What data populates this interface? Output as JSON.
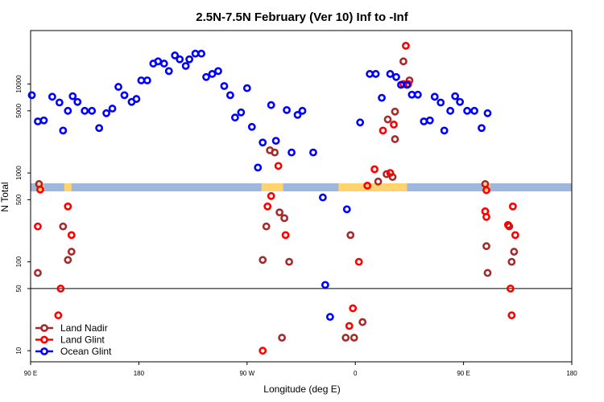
{
  "chart_data": {
    "type": "scatter",
    "title": "2.5N-7.5N February (Ver 10)   Inf to -Inf",
    "xlabel": "Longitude (deg E)",
    "ylabel": "N Total",
    "x_axis": {
      "range": [
        90,
        450
      ],
      "ticks": [
        {
          "value": 90,
          "label": "90 E"
        },
        {
          "value": 180,
          "label": "180"
        },
        {
          "value": 270,
          "label": "90 W"
        },
        {
          "value": 360,
          "label": "0"
        },
        {
          "value": 450,
          "label": "90 E"
        },
        {
          "value": 540,
          "label": "180"
        }
      ],
      "display_range_note": "axis spans 90 to 540 (wrapped longitude)"
    },
    "y_axis": {
      "scale": "log",
      "range": [
        7.5,
        40000
      ],
      "ticks": [
        10,
        50,
        100,
        500,
        1000,
        5000,
        10000
      ]
    },
    "reference_line_y": 50,
    "legend": {
      "position": "bottom-left",
      "entries": [
        {
          "name": "Land Nadir",
          "color": "#a52a2a"
        },
        {
          "name": "Land Glint",
          "color": "#ff0000"
        },
        {
          "name": "Ocean Glint",
          "color": "#0000ff"
        }
      ]
    },
    "land_mask_band": {
      "color_ocean": "#9fb7dc",
      "color_land": "#ffd36e"
    },
    "series": [
      {
        "name": "Land Nadir",
        "color": "#a52a2a",
        "points": [
          [
            97,
            750
          ],
          [
            96,
            75
          ],
          [
            117,
            250
          ],
          [
            121,
            105
          ],
          [
            124,
            130
          ],
          [
            283,
            105
          ],
          [
            286,
            250
          ],
          [
            289,
            1800
          ],
          [
            293,
            1700
          ],
          [
            297,
            360
          ],
          [
            301,
            310
          ],
          [
            305,
            100
          ],
          [
            299,
            14
          ],
          [
            352,
            14
          ],
          [
            356,
            200
          ],
          [
            359,
            14
          ],
          [
            366,
            21
          ],
          [
            379,
            800
          ],
          [
            387,
            4000
          ],
          [
            391,
            900
          ],
          [
            393,
            4900
          ],
          [
            386,
            970
          ],
          [
            393,
            2400
          ],
          [
            400,
            18000
          ],
          [
            405,
            11000
          ],
          [
            468,
            750
          ],
          [
            469,
            150
          ],
          [
            470,
            75
          ],
          [
            488,
            250
          ],
          [
            490,
            100
          ],
          [
            492,
            130
          ]
        ]
      },
      {
        "name": "Land Glint",
        "color": "#ff0000",
        "points": [
          [
            96,
            250
          ],
          [
            98,
            650
          ],
          [
            115,
            50
          ],
          [
            113,
            25
          ],
          [
            121,
            420
          ],
          [
            124,
            200
          ],
          [
            283,
            10
          ],
          [
            287,
            420
          ],
          [
            290,
            550
          ],
          [
            296,
            1200
          ],
          [
            302,
            200
          ],
          [
            355,
            19
          ],
          [
            358,
            30
          ],
          [
            363,
            100
          ],
          [
            370,
            720
          ],
          [
            376,
            1100
          ],
          [
            389,
            1000
          ],
          [
            383,
            3000
          ],
          [
            392,
            3500
          ],
          [
            400,
            10000
          ],
          [
            402,
            27000
          ],
          [
            404,
            10000
          ],
          [
            469,
            640
          ],
          [
            468,
            370
          ],
          [
            469,
            320
          ],
          [
            487,
            260
          ],
          [
            489,
            50
          ],
          [
            490,
            25
          ],
          [
            491,
            420
          ],
          [
            493,
            200
          ]
        ]
      },
      {
        "name": "Ocean Glint",
        "color": "#0000ff",
        "points": [
          [
            91,
            7500
          ],
          [
            96,
            3800
          ],
          [
            101,
            3900
          ],
          [
            108,
            7200
          ],
          [
            114,
            6200
          ],
          [
            117,
            3000
          ],
          [
            121,
            5000
          ],
          [
            125,
            7300
          ],
          [
            129,
            6300
          ],
          [
            135,
            5000
          ],
          [
            141,
            5000
          ],
          [
            147,
            3200
          ],
          [
            153,
            4700
          ],
          [
            158,
            5300
          ],
          [
            163,
            9300
          ],
          [
            168,
            7500
          ],
          [
            174,
            6300
          ],
          [
            178,
            6800
          ],
          [
            182,
            11000
          ],
          [
            187,
            11000
          ],
          [
            192,
            17000
          ],
          [
            196,
            18000
          ],
          [
            201,
            17000
          ],
          [
            205,
            14000
          ],
          [
            210,
            21000
          ],
          [
            214,
            19000
          ],
          [
            219,
            16000
          ],
          [
            222,
            19000
          ],
          [
            227,
            22000
          ],
          [
            232,
            22000
          ],
          [
            236,
            12000
          ],
          [
            241,
            13000
          ],
          [
            246,
            14000
          ],
          [
            251,
            9500
          ],
          [
            256,
            7500
          ],
          [
            260,
            4200
          ],
          [
            265,
            4800
          ],
          [
            270,
            9000
          ],
          [
            274,
            3300
          ],
          [
            279,
            1150
          ],
          [
            283,
            2200
          ],
          [
            290,
            5800
          ],
          [
            294,
            2300
          ],
          [
            303,
            5100
          ],
          [
            307,
            1700
          ],
          [
            312,
            4500
          ],
          [
            316,
            5000
          ],
          [
            325,
            1700
          ],
          [
            333,
            530
          ],
          [
            335,
            55
          ],
          [
            339,
            24
          ],
          [
            353,
            390
          ],
          [
            364,
            3700
          ],
          [
            372,
            13000
          ],
          [
            377,
            13000
          ],
          [
            382,
            7000
          ],
          [
            389,
            13000
          ],
          [
            394,
            12000
          ],
          [
            398,
            9800
          ],
          [
            403,
            9800
          ],
          [
            407,
            7600
          ],
          [
            412,
            7600
          ],
          [
            417,
            3800
          ],
          [
            422,
            3900
          ],
          [
            426,
            7200
          ],
          [
            431,
            6200
          ],
          [
            434,
            3000
          ],
          [
            439,
            5000
          ],
          [
            443,
            7300
          ],
          [
            447,
            6300
          ],
          [
            453,
            5000
          ],
          [
            459,
            5000
          ],
          [
            465,
            3200
          ],
          [
            470,
            4700
          ]
        ]
      }
    ]
  }
}
